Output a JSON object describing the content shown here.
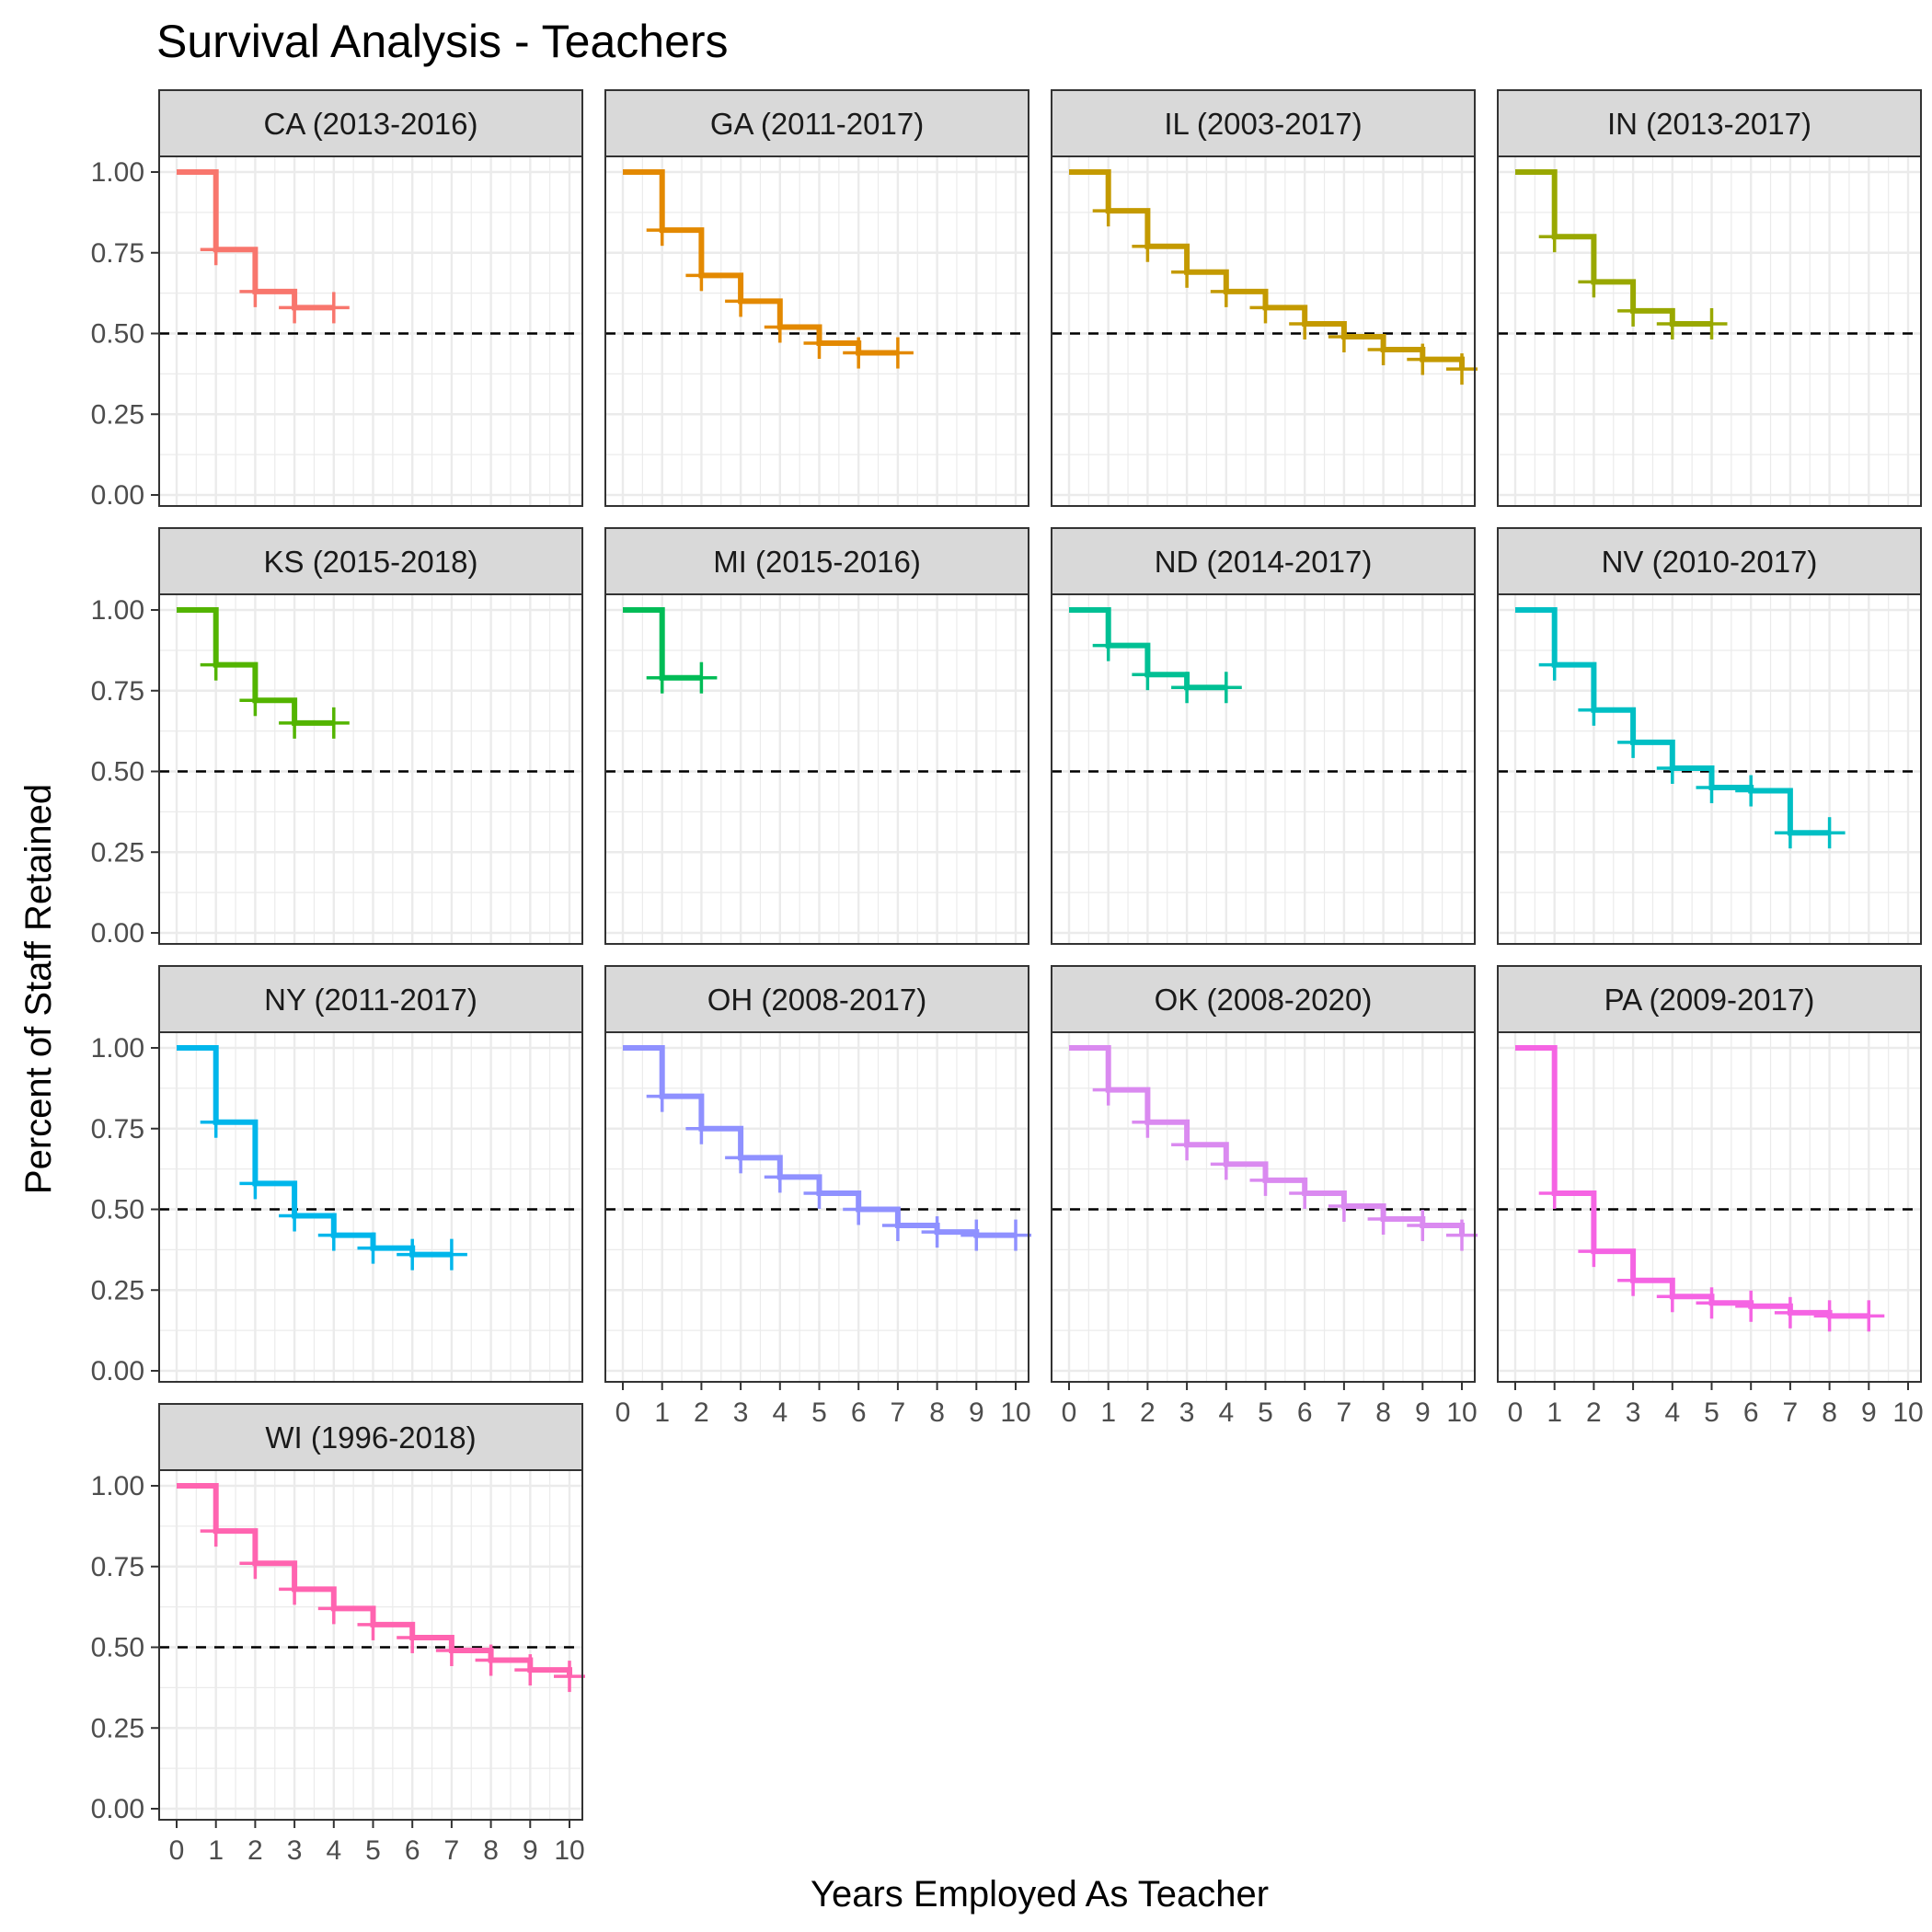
{
  "chart_data": {
    "type": "line",
    "title": "Survival Analysis - Teachers",
    "xlabel": "Years Employed As Teacher",
    "ylabel": "Percent of Staff Retained",
    "xlim": [
      0,
      10
    ],
    "ylim": [
      0,
      1
    ],
    "x_ticks": [
      0,
      1,
      2,
      3,
      4,
      5,
      6,
      7,
      8,
      9,
      10
    ],
    "y_ticks": [
      0,
      0.25,
      0.5,
      0.75,
      1
    ],
    "y_tick_labels": [
      "0.00",
      "0.25",
      "0.50",
      "0.75",
      "1.00"
    ],
    "reference_line": 0.5,
    "grid": true,
    "legend": "none",
    "panels": [
      {
        "name": "CA (2013-2016)",
        "color": "#F8766D",
        "x": [
          0,
          1,
          2,
          3,
          4
        ],
        "y": [
          1.0,
          0.76,
          0.63,
          0.58,
          0.58
        ]
      },
      {
        "name": "GA (2011-2017)",
        "color": "#E38900",
        "x": [
          0,
          1,
          2,
          3,
          4,
          5,
          6,
          7
        ],
        "y": [
          1.0,
          0.82,
          0.68,
          0.6,
          0.52,
          0.47,
          0.44,
          0.44
        ]
      },
      {
        "name": "IL (2003-2017)",
        "color": "#C49A00",
        "x": [
          0,
          1,
          2,
          3,
          4,
          5,
          6,
          7,
          8,
          9,
          10
        ],
        "y": [
          1.0,
          0.88,
          0.77,
          0.69,
          0.63,
          0.58,
          0.53,
          0.49,
          0.45,
          0.42,
          0.39
        ]
      },
      {
        "name": "IN (2013-2017)",
        "color": "#99A800",
        "x": [
          0,
          1,
          2,
          3,
          4,
          5
        ],
        "y": [
          1.0,
          0.8,
          0.66,
          0.57,
          0.53,
          0.53
        ]
      },
      {
        "name": "KS (2015-2018)",
        "color": "#53B400",
        "x": [
          0,
          1,
          2,
          3,
          4
        ],
        "y": [
          1.0,
          0.83,
          0.72,
          0.65,
          0.65
        ]
      },
      {
        "name": "MI (2015-2016)",
        "color": "#00BC56",
        "x": [
          0,
          1,
          2
        ],
        "y": [
          1.0,
          0.79,
          0.79
        ]
      },
      {
        "name": "ND (2014-2017)",
        "color": "#00C094",
        "x": [
          0,
          1,
          2,
          3,
          4
        ],
        "y": [
          1.0,
          0.89,
          0.8,
          0.76,
          0.76
        ]
      },
      {
        "name": "NV (2010-2017)",
        "color": "#00BFC4",
        "x": [
          0,
          1,
          2,
          3,
          4,
          5,
          6,
          7,
          8
        ],
        "y": [
          1.0,
          0.83,
          0.69,
          0.59,
          0.51,
          0.45,
          0.44,
          0.31,
          0.31
        ]
      },
      {
        "name": "NY (2011-2017)",
        "color": "#00B6EB",
        "x": [
          0,
          1,
          2,
          3,
          4,
          5,
          6,
          7
        ],
        "y": [
          1.0,
          0.77,
          0.58,
          0.48,
          0.42,
          0.38,
          0.36,
          0.36
        ]
      },
      {
        "name": "OH (2008-2017)",
        "color": "#8F91FF",
        "x": [
          0,
          1,
          2,
          3,
          4,
          5,
          6,
          7,
          8,
          9,
          10
        ],
        "y": [
          1.0,
          0.85,
          0.75,
          0.66,
          0.6,
          0.55,
          0.5,
          0.45,
          0.43,
          0.42,
          0.42
        ]
      },
      {
        "name": "OK (2008-2020)",
        "color": "#DA8AF0",
        "x": [
          0,
          1,
          2,
          3,
          4,
          5,
          6,
          7,
          8,
          9,
          10
        ],
        "y": [
          1.0,
          0.87,
          0.77,
          0.7,
          0.64,
          0.59,
          0.55,
          0.51,
          0.47,
          0.45,
          0.42
        ]
      },
      {
        "name": "PA (2009-2017)",
        "color": "#F564E3",
        "x": [
          0,
          1,
          2,
          3,
          4,
          5,
          6,
          7,
          8,
          9
        ],
        "y": [
          1.0,
          0.55,
          0.37,
          0.28,
          0.23,
          0.21,
          0.2,
          0.18,
          0.17,
          0.17
        ]
      },
      {
        "name": "WI (1996-2018)",
        "color": "#FF64B0",
        "x": [
          0,
          1,
          2,
          3,
          4,
          5,
          6,
          7,
          8,
          9,
          10
        ],
        "y": [
          1.0,
          0.86,
          0.76,
          0.68,
          0.62,
          0.57,
          0.53,
          0.49,
          0.46,
          0.43,
          0.41
        ]
      }
    ]
  }
}
